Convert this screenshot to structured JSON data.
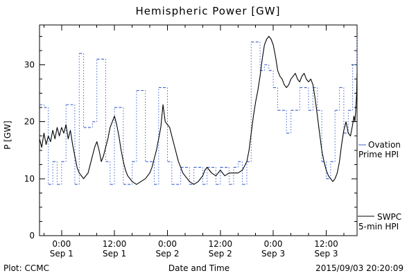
{
  "chart": {
    "title": "Hemispheric Power [GW]",
    "ylabel": "P [GW]",
    "xlabel": "Date and Time",
    "footer_left": "Plot: CCMC",
    "timestamp": "2015/09/03 20:20:09",
    "legend": {
      "ovation_1": "Ovation",
      "ovation_2": "Prime HPI",
      "swpc_1": "SWPC",
      "swpc_2": "5-min HPI"
    }
  },
  "chart_data": {
    "type": "line",
    "title": "Hemispheric Power [GW]",
    "xlabel": "Date and Time",
    "ylabel": "P [GW]",
    "x_unit": "hours since 2015-09-01 00:00",
    "xlim": [
      -5,
      67
    ],
    "ylim": [
      0,
      37
    ],
    "y_ticks": [
      0,
      10,
      20,
      30
    ],
    "y_minor_step": 2.5,
    "x_minor_step": 4,
    "grid": false,
    "legend_position": "right",
    "x_ticks": [
      {
        "hour": 0,
        "time": "0:00",
        "date": "Sep 1"
      },
      {
        "hour": 12,
        "time": "12:00",
        "date": "Sep 1"
      },
      {
        "hour": 24,
        "time": "0:00",
        "date": "Sep 2"
      },
      {
        "hour": 36,
        "time": "12:00",
        "date": "Sep 2"
      },
      {
        "hour": 48,
        "time": "0:00",
        "date": "Sep 3"
      },
      {
        "hour": 60,
        "time": "12:00",
        "date": "Sep 3"
      }
    ],
    "series": [
      {
        "name": "Ovation Prime HPI",
        "color": "#3a5fcd",
        "style": "step-dashed",
        "points": [
          [
            -5,
            23
          ],
          [
            -4,
            22.5
          ],
          [
            -3,
            9
          ],
          [
            -2,
            13
          ],
          [
            -1,
            9
          ],
          [
            0,
            13
          ],
          [
            1,
            23
          ],
          [
            2,
            23
          ],
          [
            3,
            9
          ],
          [
            4,
            32
          ],
          [
            5,
            19
          ],
          [
            6,
            19
          ],
          [
            7,
            20
          ],
          [
            8,
            31
          ],
          [
            9,
            31
          ],
          [
            10,
            13
          ],
          [
            11,
            9
          ],
          [
            12,
            22.5
          ],
          [
            13,
            22.5
          ],
          [
            14,
            9
          ],
          [
            15,
            9
          ],
          [
            16,
            13
          ],
          [
            17,
            25.5
          ],
          [
            18,
            25.5
          ],
          [
            19,
            13
          ],
          [
            20,
            13
          ],
          [
            21,
            9
          ],
          [
            22,
            26
          ],
          [
            23,
            26
          ],
          [
            24,
            13
          ],
          [
            25,
            9
          ],
          [
            26,
            9
          ],
          [
            27,
            12
          ],
          [
            28,
            12
          ],
          [
            29,
            9
          ],
          [
            30,
            12
          ],
          [
            31,
            12
          ],
          [
            32,
            9
          ],
          [
            33,
            12
          ],
          [
            34,
            12
          ],
          [
            35,
            9
          ],
          [
            36,
            12
          ],
          [
            37,
            12
          ],
          [
            38,
            9
          ],
          [
            39,
            12
          ],
          [
            40,
            13
          ],
          [
            41,
            9
          ],
          [
            42,
            13
          ],
          [
            43,
            34
          ],
          [
            44,
            34
          ],
          [
            45,
            29
          ],
          [
            46,
            30
          ],
          [
            47,
            29
          ],
          [
            48,
            26
          ],
          [
            49,
            22
          ],
          [
            50,
            22
          ],
          [
            51,
            18
          ],
          [
            52,
            22
          ],
          [
            53,
            22
          ],
          [
            54,
            26
          ],
          [
            55,
            26
          ],
          [
            56,
            22
          ],
          [
            57,
            26
          ],
          [
            58,
            22
          ],
          [
            59,
            13
          ],
          [
            60,
            10
          ],
          [
            61,
            13
          ],
          [
            62,
            22
          ],
          [
            63,
            26
          ],
          [
            64,
            18
          ],
          [
            65,
            22
          ],
          [
            66,
            30
          ],
          [
            67,
            35
          ]
        ]
      },
      {
        "name": "SWPC 5-min HPI",
        "color": "#000000",
        "style": "solid",
        "points": [
          [
            -5,
            17
          ],
          [
            -4.5,
            15.5
          ],
          [
            -4,
            18
          ],
          [
            -3.5,
            16
          ],
          [
            -3,
            17.5
          ],
          [
            -2.5,
            16.5
          ],
          [
            -2,
            18.5
          ],
          [
            -1.5,
            17
          ],
          [
            -1,
            19
          ],
          [
            -0.5,
            17.5
          ],
          [
            0,
            19
          ],
          [
            0.5,
            18
          ],
          [
            1,
            19.5
          ],
          [
            1.5,
            17
          ],
          [
            2,
            18.5
          ],
          [
            2.5,
            16
          ],
          [
            3,
            14
          ],
          [
            3.5,
            12
          ],
          [
            4,
            11
          ],
          [
            5,
            10
          ],
          [
            6,
            11
          ],
          [
            6.5,
            12.5
          ],
          [
            7,
            14
          ],
          [
            7.5,
            15.5
          ],
          [
            8,
            16.5
          ],
          [
            8.5,
            15
          ],
          [
            9,
            13
          ],
          [
            9.5,
            14
          ],
          [
            10,
            15.5
          ],
          [
            10.5,
            17
          ],
          [
            11,
            19
          ],
          [
            11.5,
            20
          ],
          [
            12,
            21
          ],
          [
            12.5,
            19.5
          ],
          [
            13,
            17.5
          ],
          [
            13.5,
            15
          ],
          [
            14,
            13
          ],
          [
            14.5,
            11.5
          ],
          [
            15,
            10.5
          ],
          [
            16,
            9.5
          ],
          [
            17,
            9
          ],
          [
            18,
            9.5
          ],
          [
            19,
            10
          ],
          [
            20,
            11
          ],
          [
            20.5,
            12
          ],
          [
            21,
            13.5
          ],
          [
            21.5,
            15
          ],
          [
            22,
            17
          ],
          [
            22.5,
            19
          ],
          [
            23,
            23
          ],
          [
            23.5,
            20
          ],
          [
            24,
            19.5
          ],
          [
            24.5,
            19
          ],
          [
            25,
            17.5
          ],
          [
            25.5,
            16
          ],
          [
            26,
            14.5
          ],
          [
            26.5,
            13
          ],
          [
            27,
            12
          ],
          [
            27.5,
            11
          ],
          [
            28,
            10.5
          ],
          [
            29,
            9.5
          ],
          [
            30,
            9
          ],
          [
            31,
            9.5
          ],
          [
            32,
            10.5
          ],
          [
            32.5,
            11.5
          ],
          [
            33,
            12
          ],
          [
            33.5,
            11.5
          ],
          [
            34,
            11
          ],
          [
            35,
            10.5
          ],
          [
            36,
            11.5
          ],
          [
            37,
            10.5
          ],
          [
            38,
            11
          ],
          [
            39,
            11
          ],
          [
            40,
            11
          ],
          [
            41,
            11.5
          ],
          [
            42,
            13
          ],
          [
            42.5,
            15
          ],
          [
            43,
            18
          ],
          [
            43.5,
            21
          ],
          [
            44,
            23.5
          ],
          [
            44.5,
            25.5
          ],
          [
            45,
            28
          ],
          [
            45.5,
            31
          ],
          [
            46,
            33.5
          ],
          [
            46.5,
            34.5
          ],
          [
            47,
            35
          ],
          [
            47.5,
            34.5
          ],
          [
            48,
            33.5
          ],
          [
            48.5,
            31.5
          ],
          [
            49,
            29
          ],
          [
            49.5,
            28
          ],
          [
            50,
            27.5
          ],
          [
            50.5,
            26.5
          ],
          [
            51,
            26
          ],
          [
            51.5,
            26.5
          ],
          [
            52,
            27.5
          ],
          [
            52.5,
            28
          ],
          [
            53,
            28.5
          ],
          [
            53.5,
            27.5
          ],
          [
            54,
            27
          ],
          [
            54.5,
            28
          ],
          [
            55,
            28.5
          ],
          [
            55.5,
            27.5
          ],
          [
            56,
            27
          ],
          [
            56.5,
            27.5
          ],
          [
            57,
            26.5
          ],
          [
            57.5,
            24
          ],
          [
            58,
            21
          ],
          [
            58.5,
            18
          ],
          [
            59,
            15
          ],
          [
            59.5,
            13
          ],
          [
            60,
            11.5
          ],
          [
            60.5,
            10.5
          ],
          [
            61,
            10
          ],
          [
            61.5,
            9.5
          ],
          [
            62,
            10
          ],
          [
            62.5,
            11
          ],
          [
            63,
            13
          ],
          [
            63.5,
            16
          ],
          [
            64,
            18.5
          ],
          [
            64.5,
            20
          ],
          [
            65,
            18
          ],
          [
            65.5,
            17.5
          ],
          [
            66,
            19.5
          ],
          [
            66.3,
            21
          ],
          [
            66.5,
            20
          ],
          [
            66.7,
            22
          ],
          [
            66.9,
            25
          ],
          [
            67,
            28.5
          ]
        ]
      }
    ]
  }
}
